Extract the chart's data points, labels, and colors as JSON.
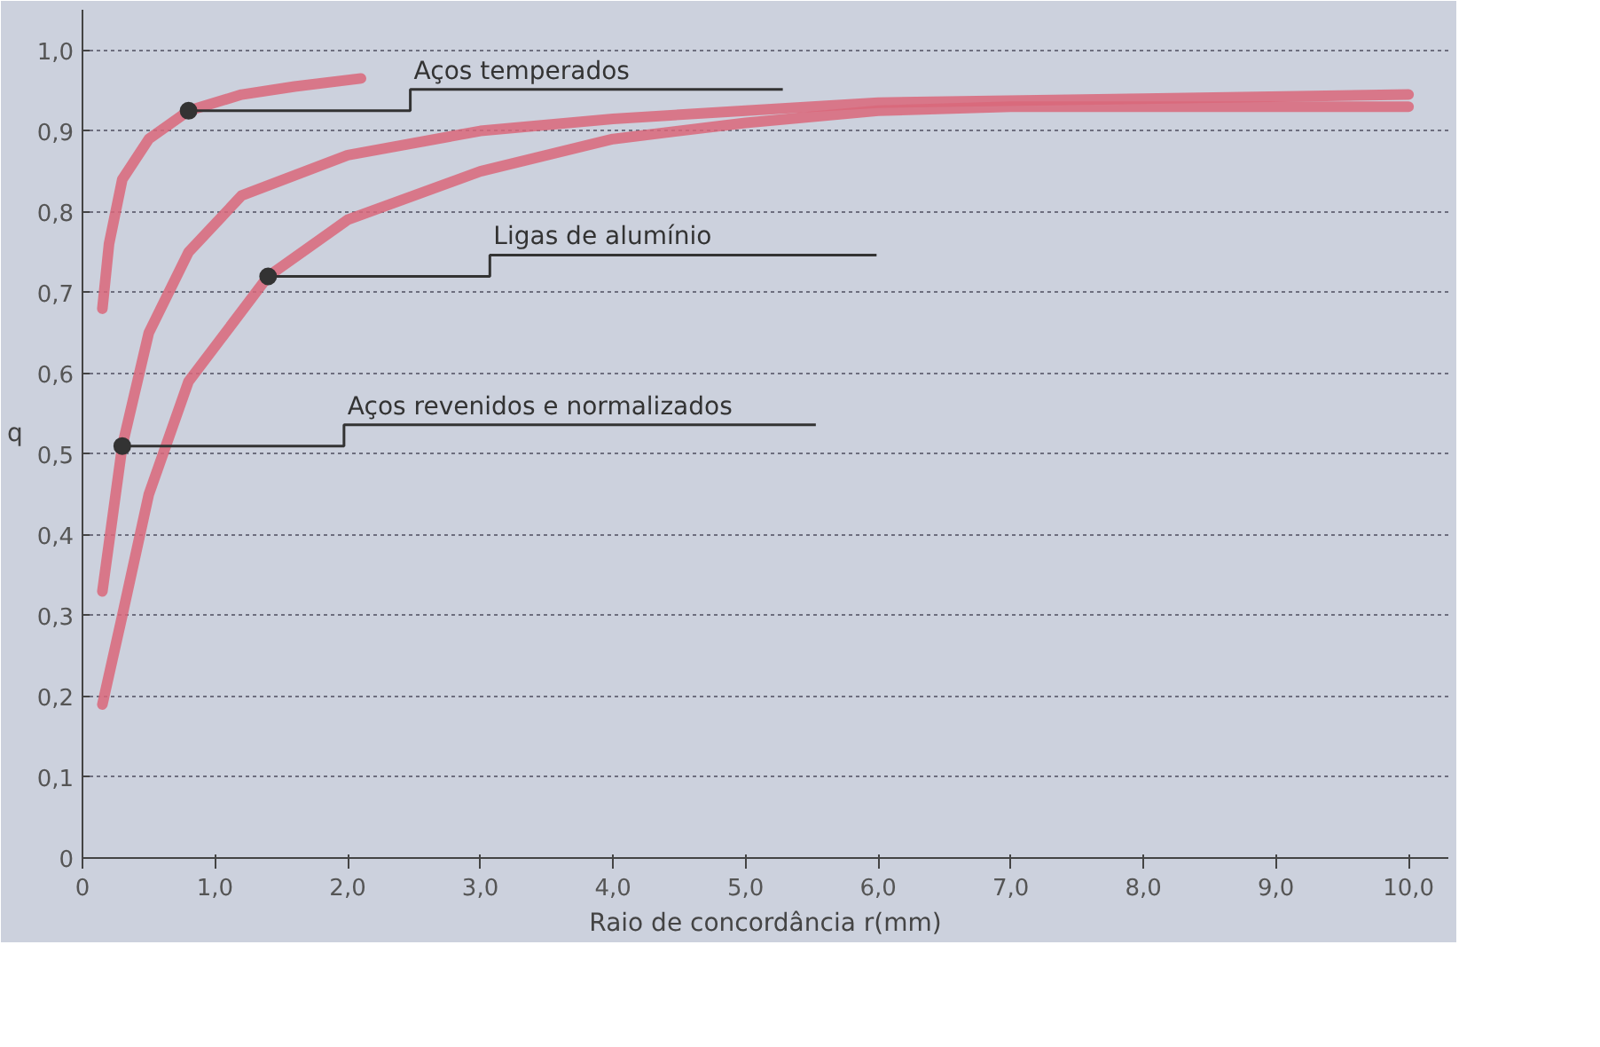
{
  "chart_data": {
    "type": "line",
    "xlabel": "Raio de concordância r(mm)",
    "ylabel": "q",
    "xlim": [
      0,
      10.3
    ],
    "ylim": [
      0,
      1.05
    ],
    "xticks": [
      {
        "value": 0,
        "label": "0"
      },
      {
        "value": 1,
        "label": "1,0"
      },
      {
        "value": 2,
        "label": "2,0"
      },
      {
        "value": 3,
        "label": "3,0"
      },
      {
        "value": 4,
        "label": "4,0"
      },
      {
        "value": 5,
        "label": "5,0"
      },
      {
        "value": 6,
        "label": "6,0"
      },
      {
        "value": 7,
        "label": "7,0"
      },
      {
        "value": 8,
        "label": "8,0"
      },
      {
        "value": 9,
        "label": "9,0"
      },
      {
        "value": 10,
        "label": "10,0"
      }
    ],
    "yticks": [
      {
        "value": 0,
        "label": "0"
      },
      {
        "value": 0.1,
        "label": "0,1"
      },
      {
        "value": 0.2,
        "label": "0,2"
      },
      {
        "value": 0.3,
        "label": "0,3"
      },
      {
        "value": 0.4,
        "label": "0,4"
      },
      {
        "value": 0.5,
        "label": "0,5"
      },
      {
        "value": 0.6,
        "label": "0,6"
      },
      {
        "value": 0.7,
        "label": "0,7"
      },
      {
        "value": 0.8,
        "label": "0,8"
      },
      {
        "value": 0.9,
        "label": "0,9"
      },
      {
        "value": 1.0,
        "label": "1,0"
      }
    ],
    "grid": "y",
    "line_style": "solid",
    "marker": "none",
    "series": [
      {
        "color": "#d9677a",
        "x": [
          0.15,
          0.2,
          0.3,
          0.5,
          0.8,
          1.2,
          1.6,
          2.1
        ],
        "values": [
          0.68,
          0.76,
          0.84,
          0.89,
          0.925,
          0.945,
          0.955,
          0.965
        ]
      },
      {
        "color": "#d9677a",
        "x": [
          0.15,
          0.3,
          0.5,
          0.8,
          1.2,
          2,
          3,
          4,
          5,
          6,
          8,
          10
        ],
        "values": [
          0.33,
          0.51,
          0.65,
          0.75,
          0.82,
          0.87,
          0.9,
          0.915,
          0.925,
          0.935,
          0.94,
          0.945
        ]
      },
      {
        "color": "#d9677a",
        "x": [
          0.15,
          0.3,
          0.5,
          0.8,
          1.4,
          2,
          3,
          4,
          5,
          6,
          7,
          8,
          10
        ],
        "values": [
          0.19,
          0.3,
          0.45,
          0.59,
          0.72,
          0.79,
          0.85,
          0.89,
          0.91,
          0.925,
          0.93,
          0.93,
          0.93
        ]
      }
    ],
    "annotations": [
      {
        "text": "Aços temperados",
        "x": 0.8,
        "y": 0.925
      },
      {
        "text": "Ligas de alumínio",
        "x": 1.4,
        "y": 0.72
      },
      {
        "text": "Aços revenidos e normalizados",
        "x": 0.3,
        "y": 0.51
      }
    ]
  }
}
